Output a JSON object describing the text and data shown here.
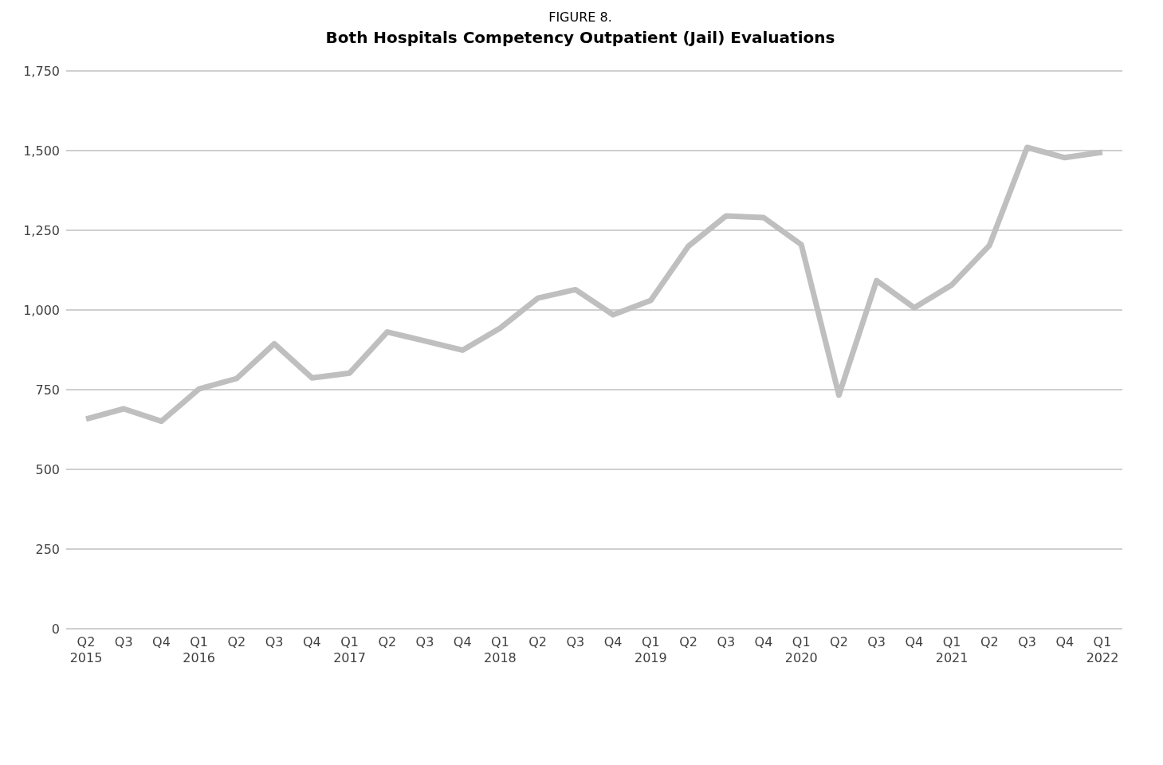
{
  "chart_data": {
    "type": "line",
    "title": "FIGURE 8.",
    "subtitle": "Both Hospitals Competency Outpatient (Jail) Evaluations",
    "categories": [
      "Q2\n2015",
      "Q3",
      "Q4",
      "Q1\n2016",
      "Q2",
      "Q3",
      "Q4",
      "Q1\n2017",
      "Q2",
      "Q3",
      "Q4",
      "Q1\n2018",
      "Q2",
      "Q3",
      "Q4",
      "Q1\n2019",
      "Q2",
      "Q3",
      "Q4",
      "Q1\n2020",
      "Q2",
      "Q3",
      "Q4",
      "Q1\n2021",
      "Q2",
      "Q3",
      "Q4",
      "Q1\n2022"
    ],
    "series": [
      {
        "color": "#bfbfbf",
        "values": [
          658,
          690,
          651,
          752,
          785,
          894,
          787,
          802,
          931,
          903,
          874,
          943,
          1037,
          1064,
          985,
          1030,
          1200,
          1295,
          1290,
          1205,
          733,
          1092,
          1007,
          1079,
          1203,
          1510,
          1478,
          1495
        ]
      }
    ],
    "ylim": [
      0,
      1750
    ],
    "yticks": [
      {
        "value": 0,
        "label": "0"
      },
      {
        "value": 250,
        "label": "250"
      },
      {
        "value": 500,
        "label": "500"
      },
      {
        "value": 750,
        "label": "750"
      },
      {
        "value": 1000,
        "label": "1,000"
      },
      {
        "value": 1250,
        "label": "1,250"
      },
      {
        "value": 1500,
        "label": "1,500"
      },
      {
        "value": 1750,
        "label": "1,750"
      }
    ],
    "grid": "y",
    "marker": "none",
    "line_style": "solid"
  }
}
